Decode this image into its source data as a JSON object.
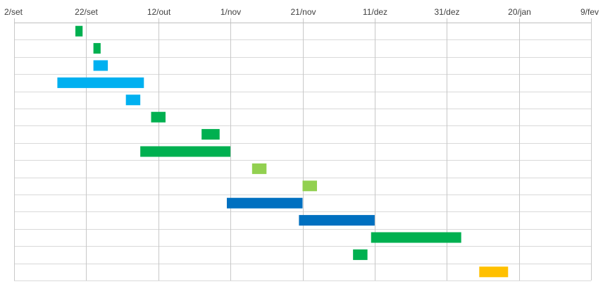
{
  "chart_data": {
    "type": "gantt",
    "x_type": "date",
    "xlim": [
      "2024-09-02",
      "2025-02-09"
    ],
    "x_ticks": [
      {
        "date": "2024-09-02",
        "label": "2/set"
      },
      {
        "date": "2024-09-22",
        "label": "22/set"
      },
      {
        "date": "2024-10-12",
        "label": "12/out"
      },
      {
        "date": "2024-11-01",
        "label": "1/nov"
      },
      {
        "date": "2024-11-21",
        "label": "21/nov"
      },
      {
        "date": "2024-12-11",
        "label": "11/dez"
      },
      {
        "date": "2024-12-31",
        "label": "31/dez"
      },
      {
        "date": "2025-01-20",
        "label": "20/jan"
      },
      {
        "date": "2025-02-09",
        "label": "9/fev"
      }
    ],
    "grid": true,
    "tasks": [
      {
        "start": "2024-09-19",
        "end": "2024-09-21",
        "color": "#00b050"
      },
      {
        "start": "2024-09-24",
        "end": "2024-09-26",
        "color": "#00b050"
      },
      {
        "start": "2024-09-24",
        "end": "2024-09-28",
        "color": "#00b0f0"
      },
      {
        "start": "2024-09-14",
        "end": "2024-10-08",
        "color": "#00b0f0"
      },
      {
        "start": "2024-10-03",
        "end": "2024-10-07",
        "color": "#00b0f0"
      },
      {
        "start": "2024-10-10",
        "end": "2024-10-14",
        "color": "#00b050"
      },
      {
        "start": "2024-10-24",
        "end": "2024-10-29",
        "color": "#00b050"
      },
      {
        "start": "2024-10-07",
        "end": "2024-11-01",
        "color": "#00b050"
      },
      {
        "start": "2024-11-07",
        "end": "2024-11-11",
        "color": "#92d050"
      },
      {
        "start": "2024-11-21",
        "end": "2024-11-25",
        "color": "#92d050"
      },
      {
        "start": "2024-10-31",
        "end": "2024-11-21",
        "color": "#0070c0"
      },
      {
        "start": "2024-11-20",
        "end": "2024-12-11",
        "color": "#0070c0"
      },
      {
        "start": "2024-12-10",
        "end": "2025-01-04",
        "color": "#00b050"
      },
      {
        "start": "2024-12-05",
        "end": "2024-12-09",
        "color": "#00b050"
      },
      {
        "start": "2025-01-09",
        "end": "2025-01-17",
        "color": "#ffc000"
      }
    ]
  }
}
